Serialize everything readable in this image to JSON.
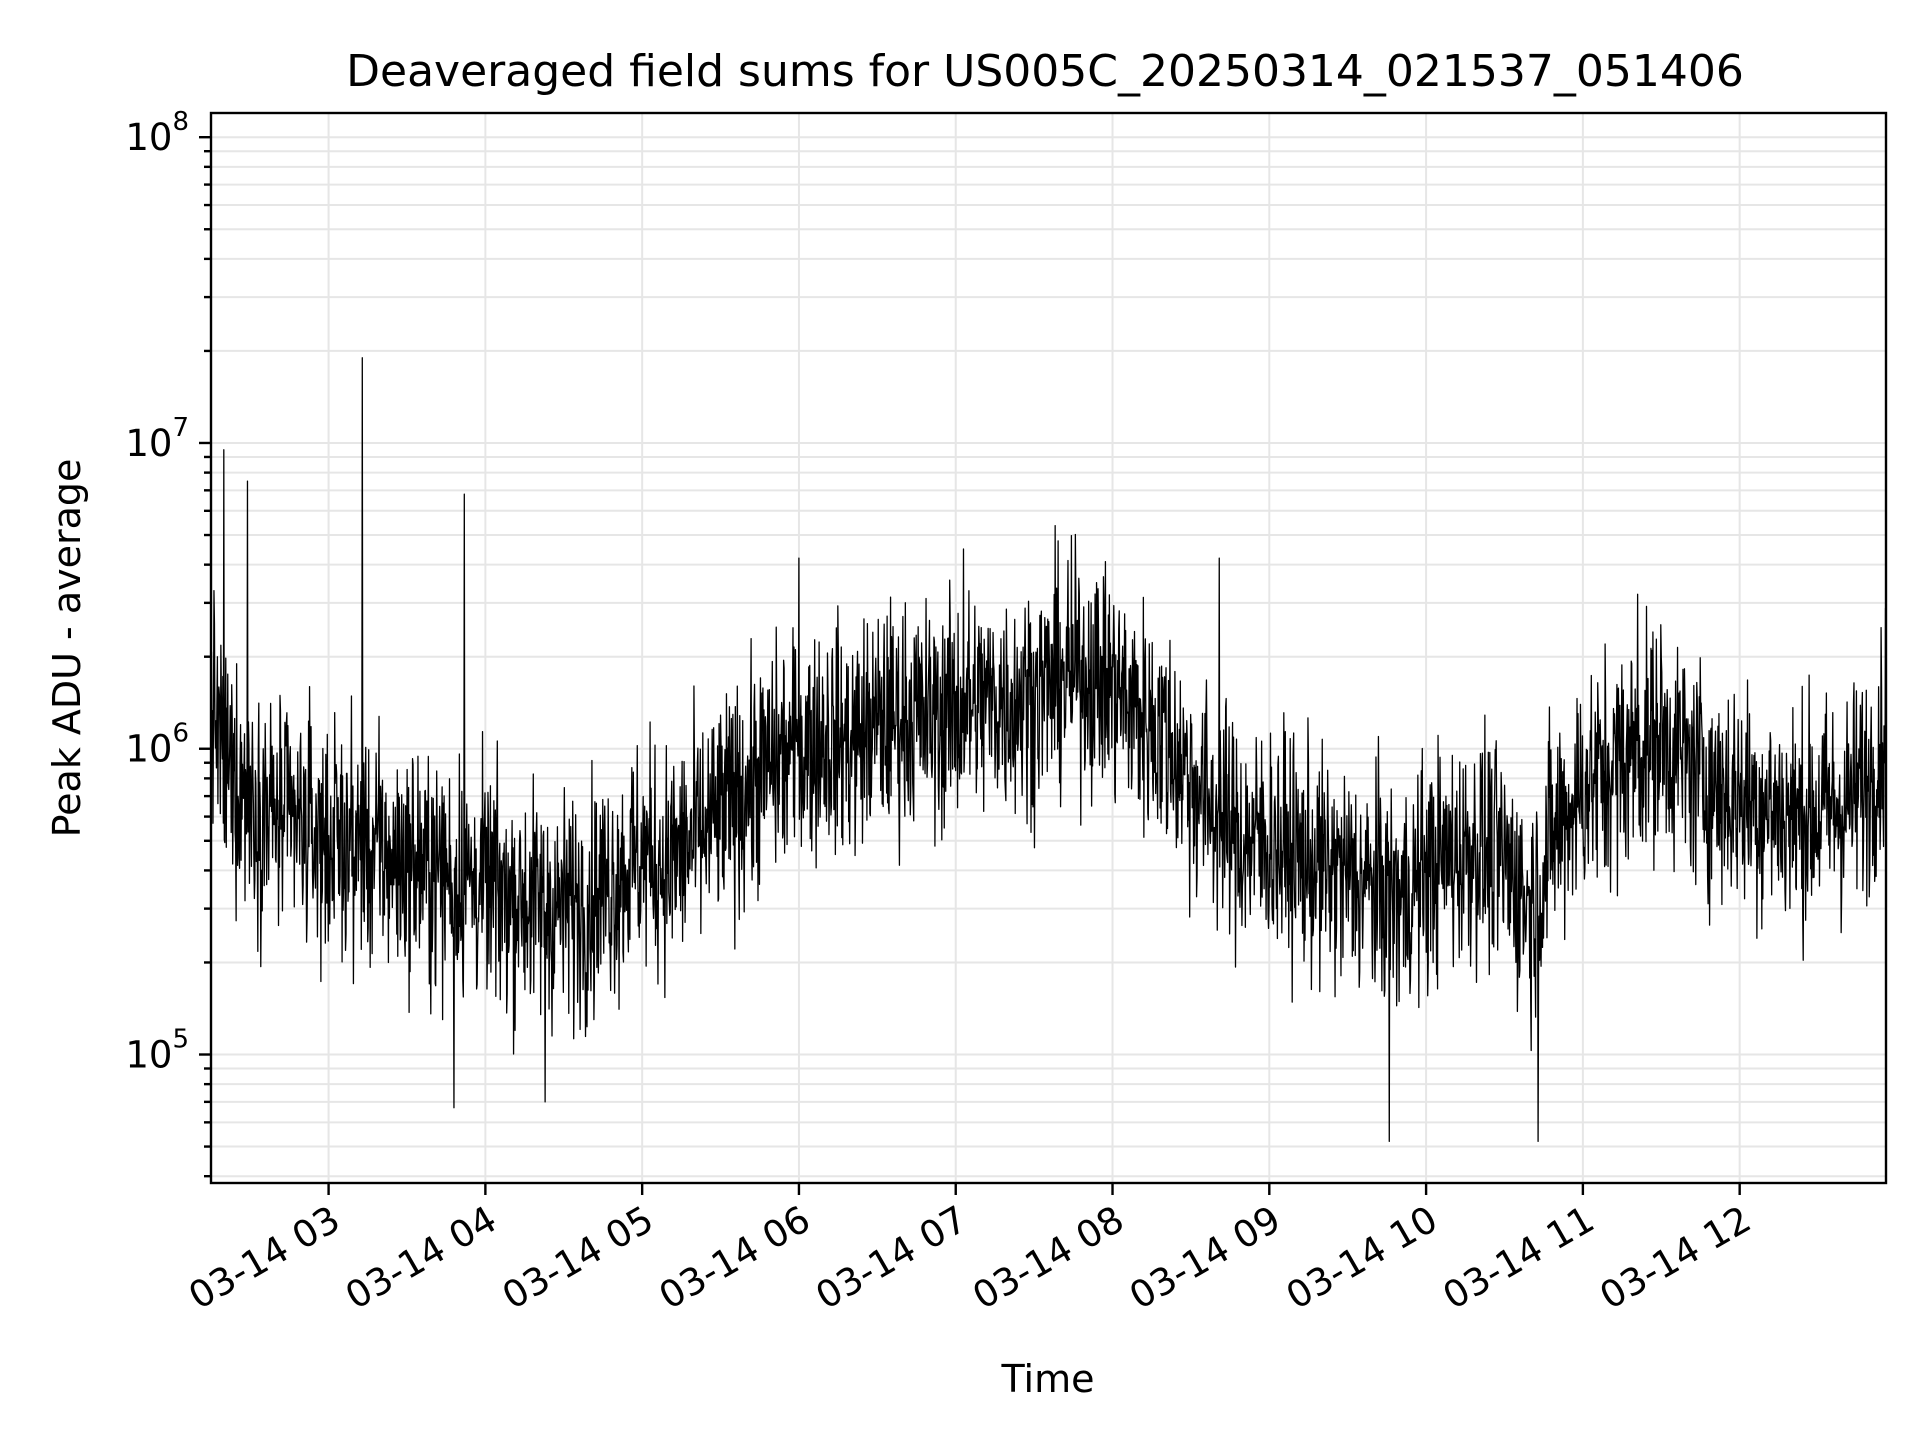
{
  "chart_data": {
    "type": "line",
    "title": "Deaveraged field sums for US005C_20250314_021537_051406",
    "xlabel": "Time",
    "ylabel": "Peak ADU - average",
    "yscale": "log",
    "grid": "on (major and minor)",
    "legend": "none",
    "x_range": [
      "03-14 02:15",
      "03-14 12:56"
    ],
    "ylim": [
      38000,
      120000000
    ],
    "x_ticks": [
      "03-14 03",
      "03-14 04",
      "03-14 05",
      "03-14 06",
      "03-14 07",
      "03-14 08",
      "03-14 09",
      "03-14 10",
      "03-14 11",
      "03-14 12"
    ],
    "y_ticks": [
      {
        "value": 100000,
        "base": "10",
        "exp": "5"
      },
      {
        "value": 1000000,
        "base": "10",
        "exp": "6"
      },
      {
        "value": 10000000,
        "base": "10",
        "exp": "7"
      },
      {
        "value": 100000000,
        "base": "10",
        "exp": "8"
      }
    ],
    "series": [
      {
        "color": "#000000",
        "x": [
          "03-14 02:15",
          "03-14 02:20",
          "03-14 02:30",
          "03-14 02:40",
          "03-14 02:50",
          "03-14 03:00",
          "03-14 03:10",
          "03-14 03:20",
          "03-14 03:30",
          "03-14 03:40",
          "03-14 03:50",
          "03-14 04:00",
          "03-14 04:10",
          "03-14 04:20",
          "03-14 04:30",
          "03-14 04:40",
          "03-14 04:50",
          "03-14 05:00",
          "03-14 05:10",
          "03-14 05:20",
          "03-14 05:30",
          "03-14 05:40",
          "03-14 05:50",
          "03-14 06:00",
          "03-14 06:10",
          "03-14 06:20",
          "03-14 06:30",
          "03-14 06:40",
          "03-14 06:50",
          "03-14 07:00",
          "03-14 07:10",
          "03-14 07:20",
          "03-14 07:30",
          "03-14 07:40",
          "03-14 07:50",
          "03-14 08:00",
          "03-14 08:10",
          "03-14 08:20",
          "03-14 08:30",
          "03-14 08:40",
          "03-14 08:50",
          "03-14 09:00",
          "03-14 09:10",
          "03-14 09:20",
          "03-14 09:30",
          "03-14 09:40",
          "03-14 09:50",
          "03-14 10:00",
          "03-14 10:10",
          "03-14 10:20",
          "03-14 10:30",
          "03-14 10:40",
          "03-14 10:50",
          "03-14 11:00",
          "03-14 11:10",
          "03-14 11:20",
          "03-14 11:30",
          "03-14 11:40",
          "03-14 11:50",
          "03-14 12:00",
          "03-14 12:10",
          "03-14 12:20",
          "03-14 12:30",
          "03-14 12:40",
          "03-14 12:50",
          "03-14 12:56"
        ],
        "y": [
          1500000,
          900000,
          700000,
          600000,
          550000,
          500000,
          480000,
          450000,
          420000,
          400000,
          380000,
          350000,
          330000,
          310000,
          300000,
          320000,
          380000,
          450000,
          420000,
          500000,
          600000,
          750000,
          900000,
          1000000,
          1100000,
          1050000,
          1200000,
          1300000,
          1250000,
          1350000,
          1400000,
          1450000,
          1500000,
          1700000,
          1800000,
          1600000,
          1300000,
          1100000,
          800000,
          600000,
          500000,
          500000,
          450000,
          400000,
          380000,
          350000,
          320000,
          400000,
          450000,
          480000,
          420000,
          300000,
          550000,
          750000,
          850000,
          1000000,
          1100000,
          900000,
          750000,
          700000,
          650000,
          600000,
          620000,
          650000,
          800000,
          1200000
        ],
        "spikes": [
          {
            "x": "03-14 02:20",
            "y": 9500000
          },
          {
            "x": "03-14 02:29",
            "y": 7500000
          },
          {
            "x": "03-14 03:13",
            "y": 19000000
          },
          {
            "x": "03-14 03:52",
            "y": 6800000
          },
          {
            "x": "03-14 06:00",
            "y": 4200000
          },
          {
            "x": "03-14 07:03",
            "y": 4500000
          },
          {
            "x": "03-14 08:41",
            "y": 4200000
          },
          {
            "x": "03-14 11:21",
            "y": 3200000
          },
          {
            "x": "03-14 09:46",
            "y": 52000
          },
          {
            "x": "03-14 10:43",
            "y": 52000
          },
          {
            "x": "03-14 03:48",
            "y": 67000
          },
          {
            "x": "03-14 04:23",
            "y": 70000
          }
        ]
      }
    ]
  }
}
